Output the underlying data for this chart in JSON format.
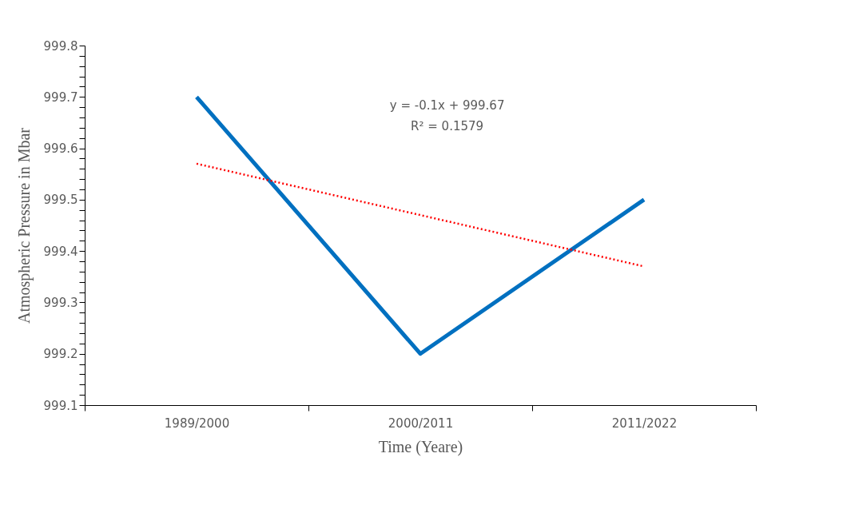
{
  "chart_data": {
    "type": "line",
    "xlabel": "Time (Yeare)",
    "ylabel": "Atmospheric Pressure in Mbar",
    "categories": [
      "1989/2000",
      "2000/2011",
      "2011/2022"
    ],
    "series": [
      {
        "color": "#0070c0",
        "values": [
          999.7,
          999.2,
          999.5
        ],
        "line_style": "solid"
      },
      {
        "type": "line",
        "color": "#ff0000",
        "values": [
          999.57,
          999.47,
          999.37
        ],
        "line_style": "dotted"
      }
    ],
    "ylim": [
      999.1,
      999.8
    ],
    "yticks": [
      999.1,
      {
        "value": 999.12,
        "label": null
      },
      {
        "value": 999.14,
        "label": null
      },
      {
        "value": 999.16,
        "label": null
      },
      {
        "value": 999.18,
        "label": null
      },
      999.2,
      {
        "value": 999.22,
        "label": null
      },
      {
        "value": 999.24,
        "label": null
      },
      {
        "value": 999.26,
        "label": null
      },
      {
        "value": 999.28,
        "label": null
      },
      999.3,
      {
        "value": 999.32,
        "label": null
      },
      {
        "value": 999.34,
        "label": null
      },
      {
        "value": 999.36,
        "label": null
      },
      {
        "value": 999.38,
        "label": null
      },
      999.4,
      {
        "value": 999.42,
        "label": null
      },
      {
        "value": 999.44,
        "label": null
      },
      {
        "value": 999.46,
        "label": null
      },
      {
        "value": 999.48,
        "label": null
      },
      999.5,
      {
        "value": 999.52,
        "label": null
      },
      {
        "value": 999.54,
        "label": null
      },
      {
        "value": 999.56,
        "label": null
      },
      {
        "value": 999.58,
        "label": null
      },
      999.6,
      {
        "value": 999.62,
        "label": null
      },
      {
        "value": 999.64,
        "label": null
      },
      {
        "value": 999.66,
        "label": null
      },
      {
        "value": 999.68,
        "label": null
      },
      999.7,
      {
        "value": 999.72,
        "label": null
      },
      {
        "value": 999.74,
        "label": null
      },
      {
        "value": 999.76,
        "label": null
      },
      {
        "value": 999.78,
        "label": null
      },
      999.8
    ],
    "annotations": [
      "y = -0.1x + 999.67",
      "R² = 0.1579"
    ],
    "grid": false,
    "marker": "none"
  }
}
